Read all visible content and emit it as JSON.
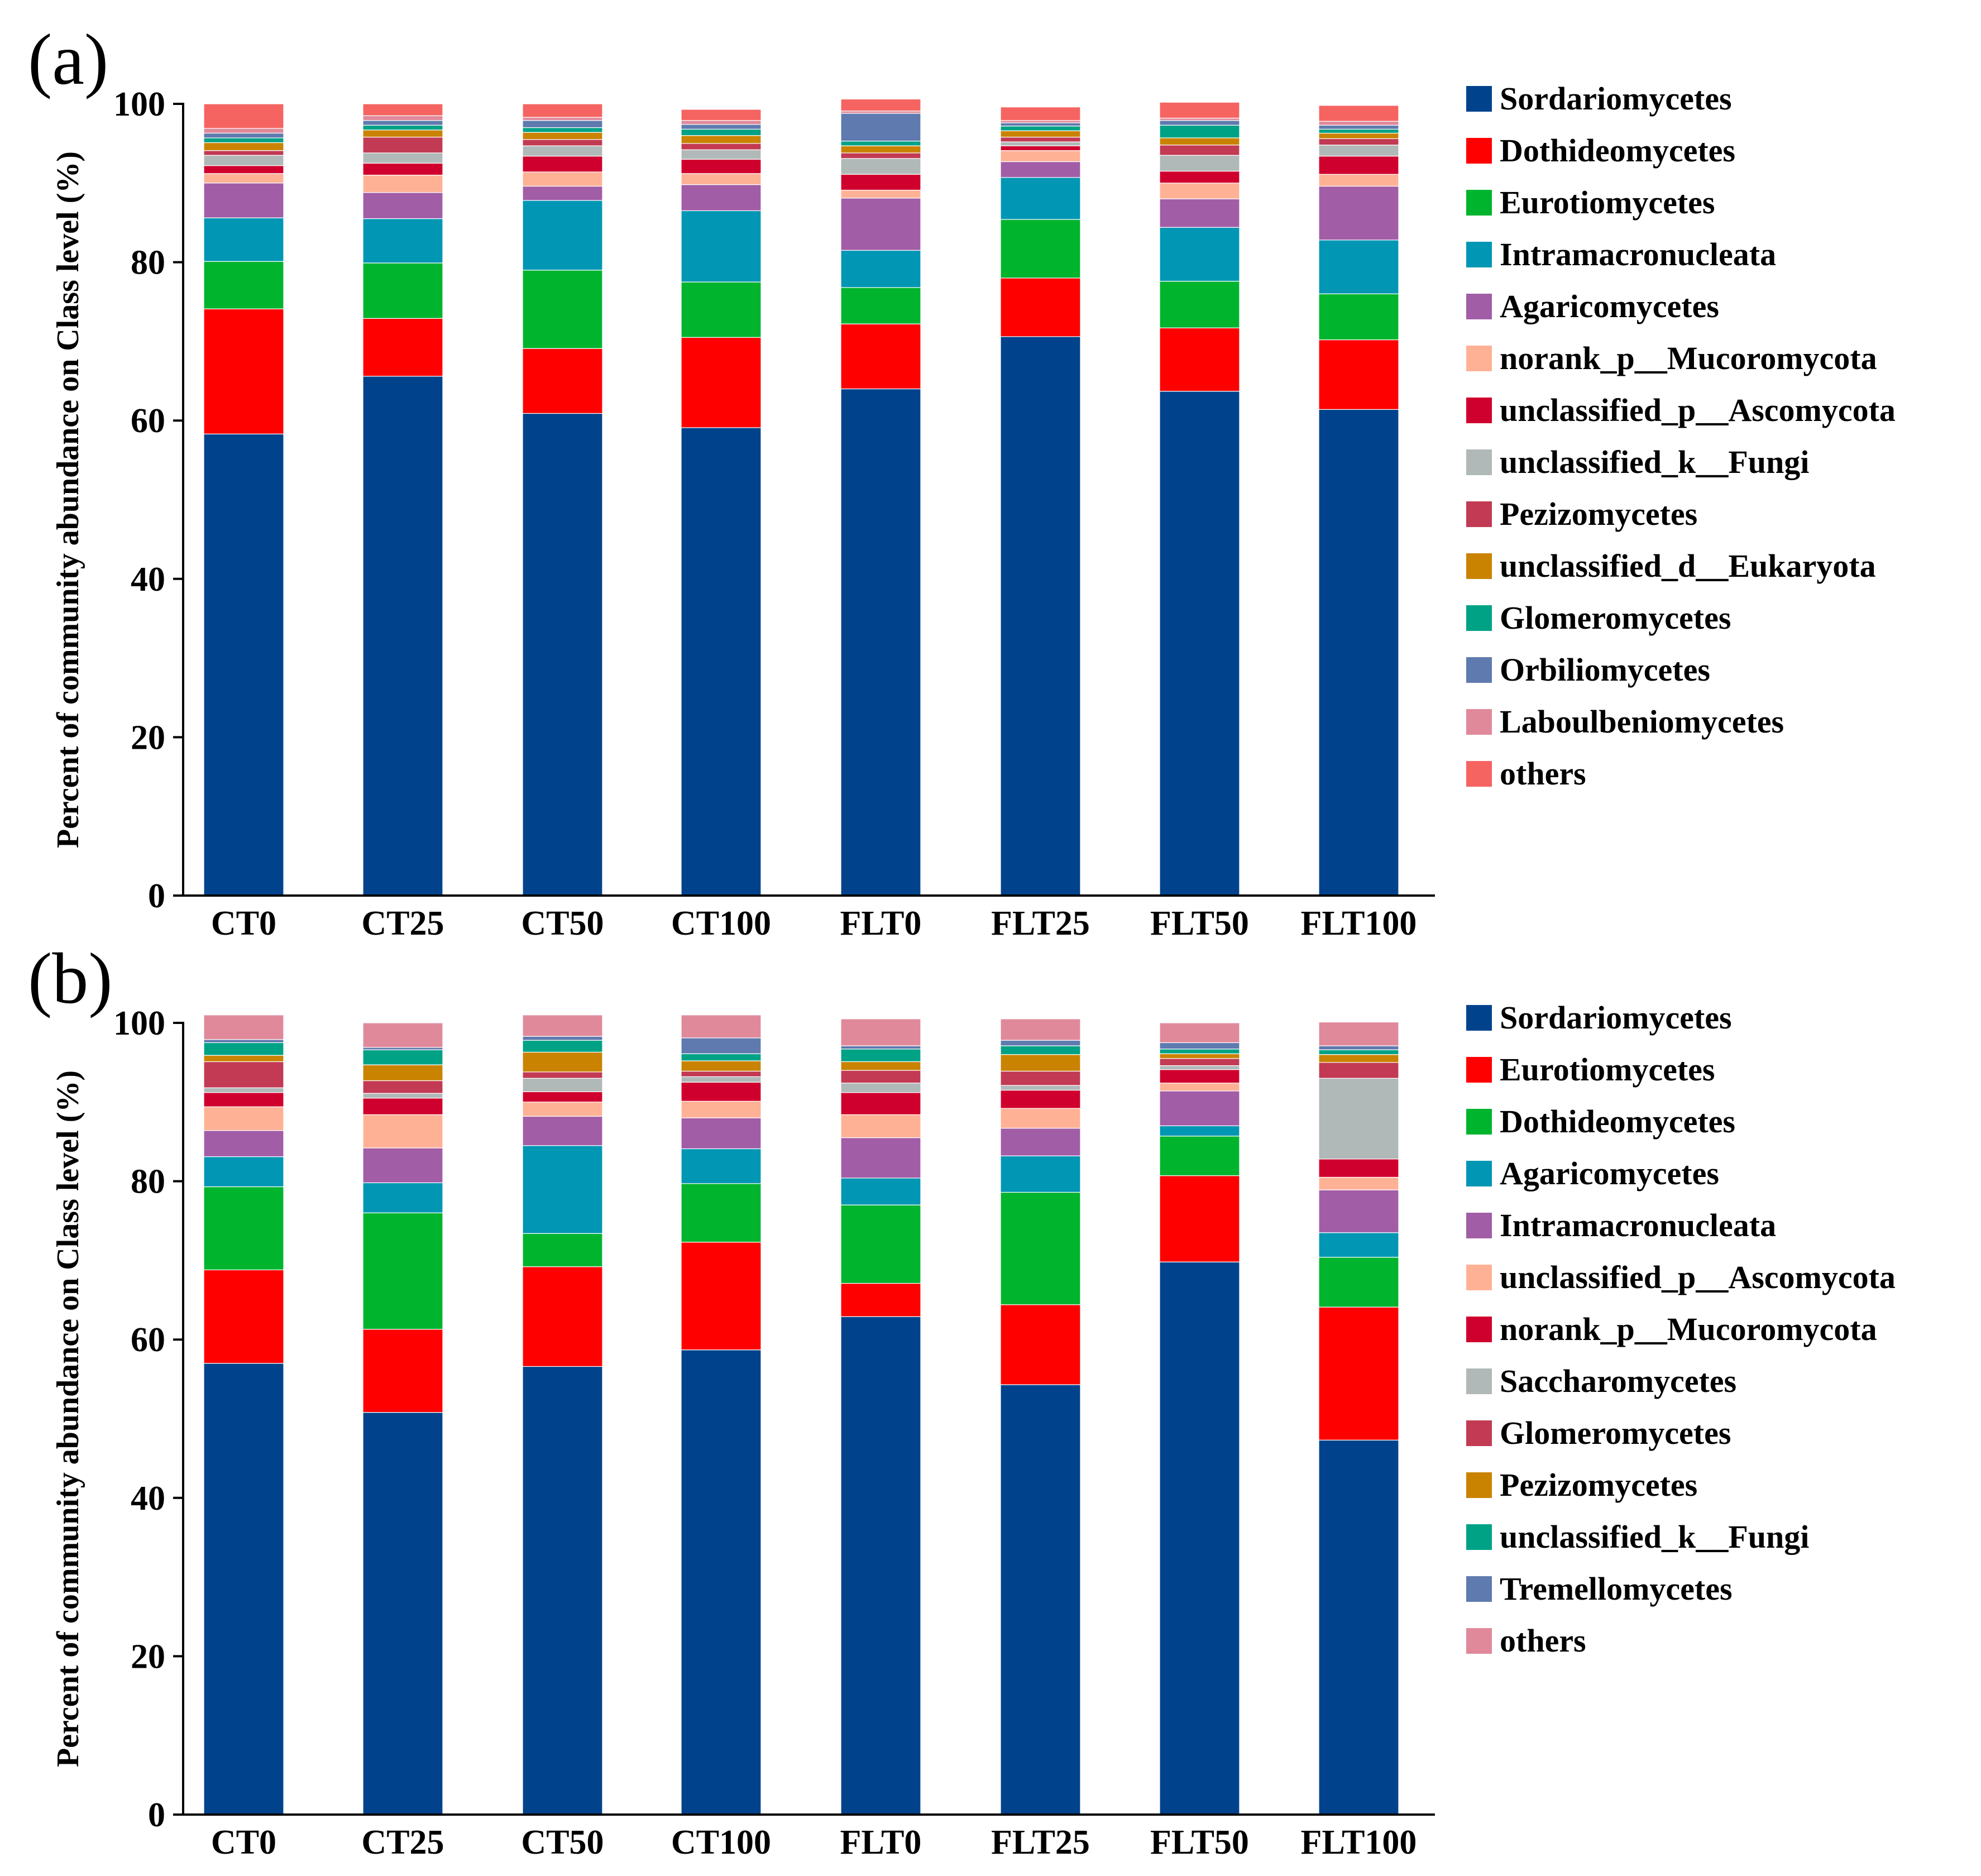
{
  "chart_data": [
    {
      "type": "bar",
      "stacked": true,
      "panel_label": "(a)",
      "ylabel": "Percent of community abundance on Class level (%)",
      "xlabel": "",
      "ylim": [
        0,
        100
      ],
      "yticks": [
        0,
        20,
        40,
        60,
        80,
        100
      ],
      "categories": [
        "CT0",
        "CT25",
        "CT50",
        "CT100",
        "FLT0",
        "FLT25",
        "FLT50",
        "FLT100"
      ],
      "series": [
        {
          "name": "Sordariomycetes",
          "color": "#00438C",
          "values": [
            58.3,
            65.6,
            60.9,
            59.1,
            64.0,
            70.6,
            63.7,
            61.4
          ]
        },
        {
          "name": "Dothideomycetes",
          "color": "#FF0000",
          "values": [
            15.8,
            7.3,
            8.2,
            11.4,
            8.2,
            7.4,
            8.0,
            8.8
          ]
        },
        {
          "name": "Eurotiomycetes",
          "color": "#00B42E",
          "values": [
            6.0,
            7.0,
            9.9,
            7.0,
            4.6,
            7.4,
            5.9,
            5.8
          ]
        },
        {
          "name": "Intramacronucleata",
          "color": "#0096B4",
          "values": [
            5.5,
            5.6,
            8.8,
            9.0,
            4.7,
            5.3,
            6.8,
            6.8
          ]
        },
        {
          "name": "Agaricomycetes",
          "color": "#A25DA7",
          "values": [
            4.4,
            3.3,
            1.8,
            3.3,
            6.6,
            2.0,
            3.6,
            6.8
          ]
        },
        {
          "name": "norank_p__Mucoromycota",
          "color": "#FFB196",
          "values": [
            1.2,
            2.2,
            1.8,
            1.4,
            1.0,
            1.4,
            2.0,
            1.5
          ]
        },
        {
          "name": "unclassified_p__Ascomycota",
          "color": "#D0002E",
          "values": [
            1.0,
            1.5,
            2.0,
            1.8,
            2.0,
            0.6,
            1.5,
            2.3
          ]
        },
        {
          "name": "unclassified_k__Fungi",
          "color": "#B0B8B8",
          "values": [
            1.3,
            1.3,
            1.3,
            1.2,
            2.0,
            0.5,
            2.0,
            1.4
          ]
        },
        {
          "name": "Pezizomycetes",
          "color": "#C23A53",
          "values": [
            0.6,
            2.0,
            0.8,
            0.8,
            0.7,
            0.6,
            1.3,
            0.8
          ]
        },
        {
          "name": "unclassified_d__Eukaryota",
          "color": "#C98300",
          "values": [
            1.0,
            0.9,
            0.9,
            1.0,
            0.9,
            0.8,
            0.9,
            0.7
          ]
        },
        {
          "name": "Glomeromycetes",
          "color": "#00A286",
          "values": [
            0.6,
            0.6,
            0.6,
            0.8,
            0.6,
            0.6,
            1.6,
            0.5
          ]
        },
        {
          "name": "Orbiliomycetes",
          "color": "#5F7AAE",
          "values": [
            0.6,
            0.6,
            0.9,
            0.6,
            3.5,
            0.4,
            0.6,
            0.5
          ]
        },
        {
          "name": "Laboulbeniomycetes",
          "color": "#E0899A",
          "values": [
            0.6,
            0.6,
            0.4,
            0.5,
            0.3,
            0.3,
            0.3,
            0.5
          ]
        },
        {
          "name": "others",
          "color": "#F56461",
          "values": [
            3.1,
            1.5,
            1.7,
            1.4,
            1.5,
            1.7,
            2.0,
            2.0
          ]
        }
      ]
    },
    {
      "type": "bar",
      "stacked": true,
      "panel_label": "(b)",
      "ylabel": "Percent of community abundance on Class level (%)",
      "xlabel": "",
      "ylim": [
        0,
        100
      ],
      "yticks": [
        0,
        20,
        40,
        60,
        80,
        100
      ],
      "categories": [
        "CT0",
        "CT25",
        "CT50",
        "CT100",
        "FLT0",
        "FLT25",
        "FLT50",
        "FLT100"
      ],
      "series": [
        {
          "name": "Sordariomycetes",
          "color": "#00438C",
          "values": [
            57.0,
            50.8,
            56.6,
            58.7,
            62.9,
            54.3,
            69.8,
            47.3
          ]
        },
        {
          "name": "Eurotiomycetes",
          "color": "#FF0000",
          "values": [
            11.8,
            10.5,
            12.6,
            13.6,
            4.2,
            10.1,
            10.9,
            16.8
          ]
        },
        {
          "name": "Dothideomycetes",
          "color": "#00B42E",
          "values": [
            10.5,
            14.7,
            4.2,
            7.4,
            9.9,
            14.2,
            5.0,
            6.3
          ]
        },
        {
          "name": "Agaricomycetes",
          "color": "#0096B4",
          "values": [
            3.8,
            3.8,
            11.1,
            4.4,
            3.4,
            4.6,
            1.3,
            3.1
          ]
        },
        {
          "name": "Intramacronucleata",
          "color": "#A25DA7",
          "values": [
            3.3,
            4.4,
            3.7,
            3.9,
            5.1,
            3.5,
            4.4,
            5.4
          ]
        },
        {
          "name": "unclassified_p__Ascomycota",
          "color": "#FFB196",
          "values": [
            3.0,
            4.2,
            1.8,
            2.1,
            2.9,
            2.5,
            1.0,
            1.6
          ]
        },
        {
          "name": "norank_p__Mucoromycota",
          "color": "#D0002E",
          "values": [
            1.8,
            2.1,
            1.3,
            2.4,
            2.8,
            2.3,
            1.7,
            2.3
          ]
        },
        {
          "name": "Saccharomycetes",
          "color": "#B0B8B8",
          "values": [
            0.6,
            0.6,
            1.7,
            0.7,
            1.2,
            0.6,
            0.5,
            10.2
          ]
        },
        {
          "name": "Glomeromycetes",
          "color": "#C23A53",
          "values": [
            3.3,
            1.6,
            0.8,
            0.7,
            1.6,
            1.8,
            0.9,
            2.0
          ]
        },
        {
          "name": "Pezizomycetes",
          "color": "#C98300",
          "values": [
            0.8,
            2.0,
            2.5,
            1.3,
            1.1,
            2.1,
            0.6,
            1.0
          ]
        },
        {
          "name": "unclassified_k__Fungi",
          "color": "#00A286",
          "values": [
            1.6,
            1.9,
            1.5,
            0.9,
            1.6,
            1.1,
            0.6,
            0.6
          ]
        },
        {
          "name": "Tremellomycetes",
          "color": "#5F7AAE",
          "values": [
            0.4,
            0.3,
            0.5,
            2.0,
            0.4,
            0.7,
            0.8,
            0.5
          ]
        },
        {
          "name": "others",
          "color": "#E0899A",
          "values": [
            3.1,
            3.1,
            2.7,
            2.9,
            3.4,
            2.7,
            2.5,
            3.0
          ]
        }
      ]
    }
  ]
}
